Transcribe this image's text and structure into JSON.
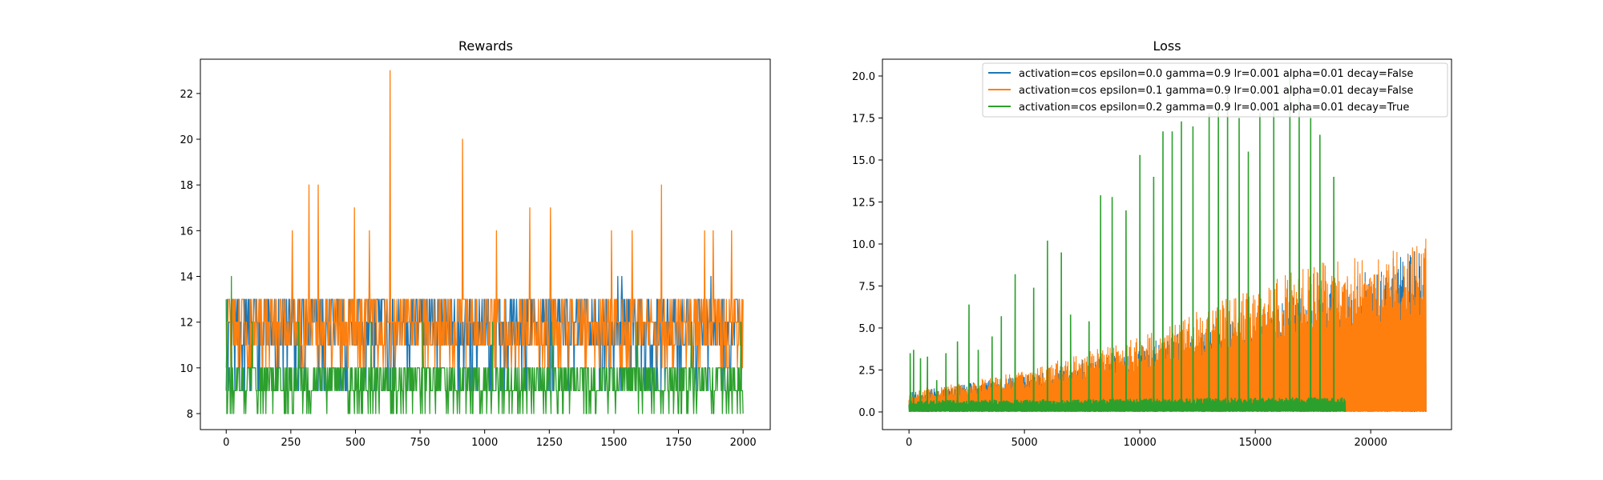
{
  "colors": {
    "series": [
      "#1f77b4",
      "#ff7f0e",
      "#2ca02c"
    ],
    "axis": "#000000",
    "background": "#ffffff"
  },
  "chart_data": [
    {
      "type": "line",
      "title": "Rewards",
      "xlabel": "",
      "ylabel": "",
      "xlim": [
        -100,
        2105
      ],
      "ylim": [
        7.3,
        23.5
      ],
      "xticks": [
        0,
        250,
        500,
        750,
        1000,
        1250,
        1500,
        1750,
        2000
      ],
      "xtick_labels": [
        "0",
        "250",
        "500",
        "750",
        "1000",
        "1250",
        "1500",
        "1750",
        "2000"
      ],
      "yticks": [
        8,
        10,
        12,
        14,
        16,
        18,
        20,
        22
      ],
      "ytick_labels": [
        "8",
        "10",
        "12",
        "14",
        "16",
        "18",
        "20",
        "22"
      ],
      "grid": false,
      "series": [
        {
          "color": "#1f77b4",
          "x": [
            0,
            1000,
            2000
          ],
          "y_min": [
            9,
            9,
            9
          ],
          "y_typ_low": [
            11,
            11,
            11
          ],
          "y_typ_high": [
            13,
            13,
            13
          ],
          "spikes": [
            [
              1515,
              14
            ],
            [
              1530,
              14
            ],
            [
              1875,
              14
            ]
          ]
        },
        {
          "color": "#ff7f0e",
          "x": [
            0,
            1000,
            2000
          ],
          "y_min": [
            10,
            10,
            10
          ],
          "y_typ_low": [
            11,
            11,
            11
          ],
          "y_typ_high": [
            13,
            13,
            13
          ],
          "spikes": [
            [
              255,
              16
            ],
            [
              320,
              18
            ],
            [
              355,
              18
            ],
            [
              495,
              17
            ],
            [
              555,
              16
            ],
            [
              635,
              23
            ],
            [
              915,
              20
            ],
            [
              1045,
              16
            ],
            [
              1175,
              17
            ],
            [
              1255,
              17
            ],
            [
              1490,
              16
            ],
            [
              1570,
              16
            ],
            [
              1685,
              18
            ],
            [
              1850,
              16
            ],
            [
              1885,
              16
            ],
            [
              1955,
              16
            ],
            [
              1995,
              13
            ]
          ]
        },
        {
          "color": "#2ca02c",
          "x": [
            0,
            1000,
            2000
          ],
          "y_min": [
            8,
            8,
            8
          ],
          "y_typ_low": [
            9,
            9,
            9
          ],
          "y_typ_high": [
            10,
            10,
            10
          ],
          "spikes": [
            [
              0,
              13
            ],
            [
              20,
              14
            ],
            [
              100,
              12
            ],
            [
              280,
              12
            ],
            [
              560,
              12
            ],
            [
              760,
              12
            ],
            [
              1030,
              12
            ],
            [
              1260,
              12
            ],
            [
              1590,
              12
            ],
            [
              1800,
              12
            ],
            [
              1990,
              12
            ]
          ]
        }
      ]
    },
    {
      "type": "line",
      "title": "Loss",
      "xlabel": "",
      "ylabel": "",
      "xlim": [
        -1150,
        23500
      ],
      "ylim": [
        -1.05,
        21.0
      ],
      "xticks": [
        0,
        5000,
        10000,
        15000,
        20000
      ],
      "xtick_labels": [
        "0",
        "5000",
        "10000",
        "15000",
        "20000"
      ],
      "yticks": [
        0.0,
        2.5,
        5.0,
        7.5,
        10.0,
        12.5,
        15.0,
        17.5,
        20.0
      ],
      "ytick_labels": [
        "0.0",
        "2.5",
        "5.0",
        "7.5",
        "10.0",
        "12.5",
        "15.0",
        "17.5",
        "20.0"
      ],
      "grid": false,
      "legend": {
        "position": "upper-right",
        "entries": [
          {
            "label": "activation=cos epsilon=0.0 gamma=0.9 lr=0.001 alpha=0.01 decay=False",
            "color": "#1f77b4"
          },
          {
            "label": "activation=cos epsilon=0.1 gamma=0.9 lr=0.001 alpha=0.01 decay=False",
            "color": "#ff7f0e"
          },
          {
            "label": "activation=cos epsilon=0.2 gamma=0.9 lr=0.001 alpha=0.01 decay=True",
            "color": "#2ca02c"
          }
        ]
      },
      "series": [
        {
          "color": "#1f77b4",
          "x_end": 22400,
          "envelope": [
            [
              0,
              1.2
            ],
            [
              5000,
              2.2
            ],
            [
              10000,
              4.0
            ],
            [
              15000,
              6.0
            ],
            [
              19000,
              8.0
            ],
            [
              22400,
              10.0
            ]
          ]
        },
        {
          "color": "#ff7f0e",
          "x_end": 22400,
          "envelope": [
            [
              0,
              1.3
            ],
            [
              2500,
              1.8
            ],
            [
              5000,
              2.5
            ],
            [
              7500,
              3.5
            ],
            [
              10000,
              4.5
            ],
            [
              12500,
              6.0
            ],
            [
              15000,
              7.5
            ],
            [
              17500,
              8.8
            ],
            [
              19000,
              9.2
            ],
            [
              21000,
              9.6
            ],
            [
              22400,
              10.4
            ]
          ]
        },
        {
          "color": "#2ca02c",
          "x_end": 18900,
          "base": [
            [
              0,
              0.7
            ],
            [
              18900,
              0.9
            ]
          ],
          "spikes": [
            [
              50,
              3.5
            ],
            [
              200,
              3.7
            ],
            [
              500,
              3.2
            ],
            [
              800,
              3.3
            ],
            [
              1200,
              1.9
            ],
            [
              1600,
              3.5
            ],
            [
              2100,
              4.2
            ],
            [
              2600,
              6.4
            ],
            [
              3000,
              3.7
            ],
            [
              3600,
              4.5
            ],
            [
              4000,
              5.7
            ],
            [
              4600,
              8.2
            ],
            [
              5400,
              7.4
            ],
            [
              6000,
              10.2
            ],
            [
              6600,
              9.5
            ],
            [
              7000,
              5.8
            ],
            [
              7800,
              5.4
            ],
            [
              8300,
              12.9
            ],
            [
              8800,
              12.8
            ],
            [
              9400,
              12.0
            ],
            [
              10000,
              15.3
            ],
            [
              10600,
              14.0
            ],
            [
              11000,
              16.7
            ],
            [
              11400,
              16.7
            ],
            [
              11800,
              17.3
            ],
            [
              12300,
              17.0
            ],
            [
              13000,
              17.8
            ],
            [
              13400,
              18.3
            ],
            [
              13800,
              19.0
            ],
            [
              14300,
              17.5
            ],
            [
              14700,
              15.5
            ],
            [
              15200,
              17.8
            ],
            [
              15800,
              18.5
            ],
            [
              16500,
              20.3
            ],
            [
              16900,
              19.0
            ],
            [
              17400,
              17.5
            ],
            [
              17800,
              16.5
            ],
            [
              18400,
              14.0
            ]
          ]
        }
      ]
    }
  ]
}
